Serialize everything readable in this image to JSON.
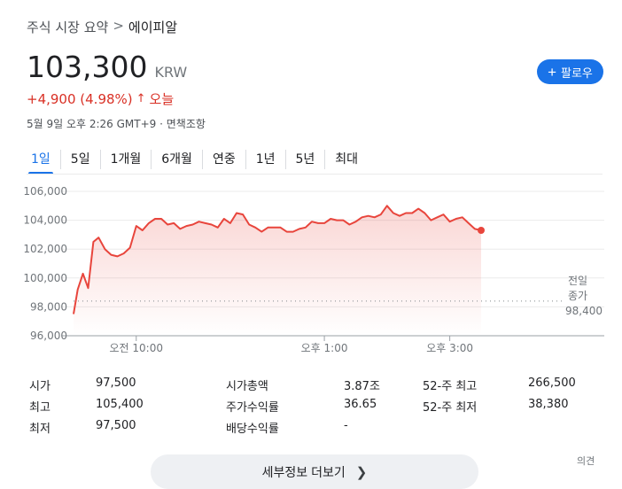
{
  "breadcrumb": {
    "parent": "주식 시장 요약",
    "separator": ">",
    "current": "에이피알"
  },
  "quote": {
    "price": "103,300",
    "currency": "KRW",
    "change": "+4,900 (4.98%)",
    "change_arrow": "↑",
    "change_period": "오늘",
    "timestamp": "5월 9일 오후 2:26 GMT+9 · 면책조항"
  },
  "follow_button": {
    "label": "팔로우",
    "icon": "plus-icon"
  },
  "tabs": [
    {
      "label": "1일",
      "active": true
    },
    {
      "label": "5일",
      "active": false
    },
    {
      "label": "1개월",
      "active": false
    },
    {
      "label": "6개월",
      "active": false
    },
    {
      "label": "연중",
      "active": false
    },
    {
      "label": "1년",
      "active": false
    },
    {
      "label": "5년",
      "active": false
    },
    {
      "label": "최대",
      "active": false
    }
  ],
  "chart_data": {
    "type": "line",
    "ylim": [
      96000,
      106000
    ],
    "yticks": [
      "106,000",
      "104,000",
      "102,000",
      "100,000",
      "98,000",
      "96,000"
    ],
    "yvalues": [
      106000,
      104000,
      102000,
      100000,
      98000,
      96000
    ],
    "xticks": [
      {
        "label": "오전 10:00",
        "t": 60
      },
      {
        "label": "오후 1:00",
        "t": 240
      },
      {
        "label": "오후 3:00",
        "t": 360
      }
    ],
    "x_range_minutes": [
      0,
      390
    ],
    "previous_close": {
      "label_line1": "전일",
      "label_line2": "종가",
      "value_label": "98,400",
      "value": 98400
    },
    "series": [
      {
        "values": [
          [
            0,
            97500
          ],
          [
            4,
            99200
          ],
          [
            9,
            100300
          ],
          [
            14,
            99300
          ],
          [
            19,
            102500
          ],
          [
            24,
            102800
          ],
          [
            30,
            102000
          ],
          [
            36,
            101600
          ],
          [
            42,
            101500
          ],
          [
            48,
            101700
          ],
          [
            54,
            102100
          ],
          [
            60,
            103600
          ],
          [
            66,
            103300
          ],
          [
            72,
            103800
          ],
          [
            78,
            104100
          ],
          [
            84,
            104100
          ],
          [
            90,
            103700
          ],
          [
            96,
            103800
          ],
          [
            102,
            103400
          ],
          [
            108,
            103600
          ],
          [
            114,
            103700
          ],
          [
            120,
            103900
          ],
          [
            126,
            103800
          ],
          [
            132,
            103700
          ],
          [
            138,
            103500
          ],
          [
            144,
            104100
          ],
          [
            150,
            103800
          ],
          [
            156,
            104500
          ],
          [
            162,
            104400
          ],
          [
            168,
            103700
          ],
          [
            174,
            103500
          ],
          [
            180,
            103200
          ],
          [
            186,
            103500
          ],
          [
            192,
            103500
          ],
          [
            198,
            103500
          ],
          [
            204,
            103200
          ],
          [
            210,
            103200
          ],
          [
            216,
            103400
          ],
          [
            222,
            103500
          ],
          [
            228,
            103900
          ],
          [
            234,
            103800
          ],
          [
            240,
            103800
          ],
          [
            246,
            104100
          ],
          [
            252,
            104000
          ],
          [
            258,
            104000
          ],
          [
            264,
            103700
          ],
          [
            270,
            103900
          ],
          [
            276,
            104200
          ],
          [
            282,
            104300
          ],
          [
            288,
            104200
          ],
          [
            294,
            104400
          ],
          [
            300,
            105000
          ],
          [
            306,
            104500
          ],
          [
            312,
            104300
          ],
          [
            318,
            104500
          ],
          [
            324,
            104500
          ],
          [
            330,
            104800
          ],
          [
            336,
            104500
          ],
          [
            342,
            104000
          ],
          [
            348,
            104200
          ],
          [
            354,
            104400
          ],
          [
            360,
            103900
          ],
          [
            366,
            104100
          ],
          [
            372,
            104200
          ],
          [
            378,
            103800
          ],
          [
            384,
            103400
          ],
          [
            390,
            103300
          ]
        ]
      }
    ]
  },
  "stats": [
    {
      "label": "시가",
      "value": "97,500"
    },
    {
      "label": "최고",
      "value": "105,400"
    },
    {
      "label": "최저",
      "value": "97,500"
    },
    {
      "label": "시가총액",
      "value": "3.87조"
    },
    {
      "label": "주가수익률",
      "value": "36.65"
    },
    {
      "label": "배당수익률",
      "value": "-"
    },
    {
      "label": "52-주 최고",
      "value": "266,500"
    },
    {
      "label": "52-주 최저",
      "value": "38,380"
    }
  ],
  "more_button": {
    "label": "세부정보 더보기",
    "icon": "chevron-right-icon"
  },
  "feedback_link": "의견",
  "colors": {
    "accent": "#1a73e8",
    "down_red": "#d93025",
    "line_red": "#e8453c"
  }
}
